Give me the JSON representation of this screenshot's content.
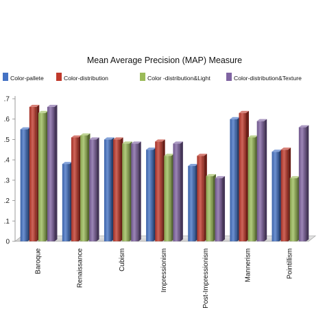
{
  "chart_data": {
    "type": "bar",
    "title": "Mean Average Precision (MAP) Measure",
    "xlabel": "",
    "ylabel": "",
    "categories": [
      "Baroque",
      "Renaissance",
      "Cubism",
      "Impressionism",
      "Post-Impressionism",
      "Mannerism",
      "Pointillism"
    ],
    "series": [
      {
        "name": "Color-pallete",
        "color": "#4472c4",
        "values": [
          0.55,
          0.38,
          0.5,
          0.45,
          0.37,
          0.6,
          0.44
        ]
      },
      {
        "name": "Color-distribution",
        "color": "#c0392b",
        "values": [
          0.66,
          0.51,
          0.5,
          0.49,
          0.42,
          0.63,
          0.45
        ]
      },
      {
        "name": "Color -distribution&Light",
        "color": "#9bbb59",
        "values": [
          0.63,
          0.52,
          0.48,
          0.42,
          0.32,
          0.51,
          0.31
        ]
      },
      {
        "name": "Color-distribution&Texture",
        "color": "#8064a2",
        "values": [
          0.66,
          0.5,
          0.48,
          0.48,
          0.31,
          0.59,
          0.56
        ]
      }
    ],
    "ylim": [
      0,
      0.7
    ],
    "y_ticks": [
      ".7",
      ".6",
      ".5",
      ".4",
      ".3",
      ".2",
      ".1",
      "0"
    ],
    "grid": false,
    "legend_position": "top"
  }
}
